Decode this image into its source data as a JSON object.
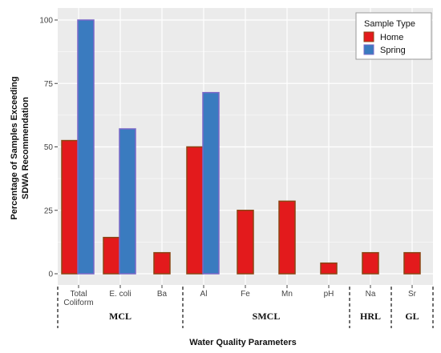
{
  "chart_data": {
    "type": "bar",
    "ylabel_lines": [
      "Percentage of Samples Exceeding",
      "SDWA Recommendation"
    ],
    "xlabel": "Water Quality Parameters",
    "ylim": [
      0,
      100
    ],
    "yticks": [
      0,
      25,
      50,
      75,
      100
    ],
    "grid": true,
    "legend": {
      "title": "Sample Type",
      "position": "top-right"
    },
    "categories": [
      {
        "lines": [
          "Total",
          "Coliform"
        ]
      },
      {
        "lines": [
          "E. coli"
        ]
      },
      {
        "lines": [
          "Ba"
        ]
      },
      {
        "lines": [
          "Al"
        ]
      },
      {
        "lines": [
          "Fe"
        ]
      },
      {
        "lines": [
          "Mn"
        ]
      },
      {
        "lines": [
          "pH"
        ]
      },
      {
        "lines": [
          "Na"
        ]
      },
      {
        "lines": [
          "Sr"
        ]
      }
    ],
    "series": [
      {
        "name": "Home",
        "color": "#e31a1c",
        "edge": "#8b4513",
        "values": [
          52.5,
          14.3,
          8.3,
          50,
          25,
          28.6,
          4.2,
          8.3,
          8.3
        ]
      },
      {
        "name": "Spring",
        "color": "#3a7bbf",
        "edge": "#7b68c8",
        "values": [
          100,
          57.1,
          null,
          71.4,
          null,
          null,
          null,
          null,
          null
        ]
      }
    ],
    "groups": [
      {
        "label": "MCL",
        "from": 0,
        "to": 2
      },
      {
        "label": "SMCL",
        "from": 3,
        "to": 6
      },
      {
        "label": "HRL",
        "from": 7,
        "to": 7
      },
      {
        "label": "GL",
        "from": 8,
        "to": 8
      }
    ],
    "background": "#ebebeb",
    "gridline_color": "#ffffff"
  }
}
